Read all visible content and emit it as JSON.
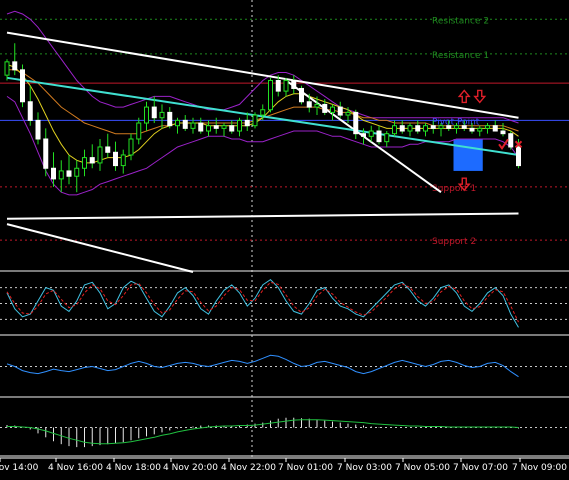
{
  "chart_data": {
    "type": "candlestick",
    "x_tick_labels": [
      "Nov 14:00",
      "4 Nov 16:00",
      "4 Nov 18:00",
      "4 Nov 20:00",
      "4 Nov 22:00",
      "7 Nov 01:00",
      "7 Nov 03:00",
      "7 Nov 05:00",
      "7 Nov 07:00",
      "7 Nov 09:00"
    ],
    "levels": [
      {
        "name": "Resistance 2",
        "color": "#1f8a1f",
        "style": "dotted",
        "level": 0.95
      },
      {
        "name": "Resistance 1",
        "color": "#1f8a1f",
        "style": "dotted",
        "level": 0.82
      },
      {
        "name": "Pivot Point",
        "color": "#3a4fff",
        "style": "solid",
        "level": 0.57
      },
      {
        "name": "Support 1",
        "color": "#c0182a",
        "style": "dotted",
        "level": 0.32
      },
      {
        "name": "Support 2",
        "color": "#c0182a",
        "style": "dotted",
        "level": 0.12
      }
    ],
    "extra_levels": [
      {
        "color": "#c0182a",
        "style": "solid",
        "level": 0.71
      }
    ],
    "candles": [
      [
        0.74,
        0.8,
        0.72,
        0.79
      ],
      [
        0.79,
        0.86,
        0.74,
        0.76
      ],
      [
        0.76,
        0.78,
        0.62,
        0.64
      ],
      [
        0.64,
        0.7,
        0.55,
        0.57
      ],
      [
        0.57,
        0.6,
        0.48,
        0.5
      ],
      [
        0.5,
        0.54,
        0.36,
        0.39
      ],
      [
        0.39,
        0.45,
        0.32,
        0.35
      ],
      [
        0.35,
        0.42,
        0.3,
        0.38
      ],
      [
        0.38,
        0.44,
        0.33,
        0.36
      ],
      [
        0.36,
        0.42,
        0.3,
        0.39
      ],
      [
        0.39,
        0.46,
        0.36,
        0.43
      ],
      [
        0.43,
        0.48,
        0.39,
        0.41
      ],
      [
        0.41,
        0.5,
        0.38,
        0.47
      ],
      [
        0.47,
        0.52,
        0.43,
        0.45
      ],
      [
        0.45,
        0.49,
        0.38,
        0.4
      ],
      [
        0.4,
        0.46,
        0.37,
        0.44
      ],
      [
        0.44,
        0.52,
        0.42,
        0.5
      ],
      [
        0.5,
        0.58,
        0.48,
        0.56
      ],
      [
        0.56,
        0.64,
        0.53,
        0.62
      ],
      [
        0.62,
        0.66,
        0.56,
        0.58
      ],
      [
        0.58,
        0.63,
        0.54,
        0.6
      ],
      [
        0.6,
        0.62,
        0.54,
        0.55
      ],
      [
        0.55,
        0.58,
        0.52,
        0.57
      ],
      [
        0.57,
        0.59,
        0.53,
        0.54
      ],
      [
        0.54,
        0.58,
        0.52,
        0.56
      ],
      [
        0.56,
        0.58,
        0.52,
        0.53
      ],
      [
        0.53,
        0.57,
        0.51,
        0.55
      ],
      [
        0.55,
        0.58,
        0.52,
        0.54
      ],
      [
        0.54,
        0.56,
        0.51,
        0.55
      ],
      [
        0.55,
        0.57,
        0.52,
        0.53
      ],
      [
        0.53,
        0.58,
        0.51,
        0.57
      ],
      [
        0.57,
        0.6,
        0.53,
        0.55
      ],
      [
        0.55,
        0.6,
        0.54,
        0.59
      ],
      [
        0.59,
        0.63,
        0.57,
        0.61
      ],
      [
        0.61,
        0.73,
        0.6,
        0.72
      ],
      [
        0.72,
        0.74,
        0.66,
        0.68
      ],
      [
        0.68,
        0.73,
        0.66,
        0.72
      ],
      [
        0.72,
        0.74,
        0.67,
        0.69
      ],
      [
        0.69,
        0.7,
        0.63,
        0.64
      ],
      [
        0.64,
        0.67,
        0.6,
        0.62
      ],
      [
        0.62,
        0.66,
        0.59,
        0.63
      ],
      [
        0.63,
        0.65,
        0.59,
        0.6
      ],
      [
        0.6,
        0.63,
        0.57,
        0.62
      ],
      [
        0.62,
        0.64,
        0.58,
        0.59
      ],
      [
        0.59,
        0.62,
        0.56,
        0.6
      ],
      [
        0.6,
        0.61,
        0.5,
        0.52
      ],
      [
        0.52,
        0.54,
        0.48,
        0.51
      ],
      [
        0.51,
        0.55,
        0.49,
        0.53
      ],
      [
        0.53,
        0.55,
        0.48,
        0.49
      ],
      [
        0.49,
        0.53,
        0.47,
        0.52
      ],
      [
        0.52,
        0.57,
        0.51,
        0.55
      ],
      [
        0.55,
        0.57,
        0.52,
        0.53
      ],
      [
        0.53,
        0.56,
        0.51,
        0.55
      ],
      [
        0.55,
        0.57,
        0.52,
        0.53
      ],
      [
        0.53,
        0.56,
        0.51,
        0.55
      ],
      [
        0.55,
        0.57,
        0.52,
        0.54
      ],
      [
        0.54,
        0.56,
        0.51,
        0.55
      ],
      [
        0.55,
        0.57,
        0.53,
        0.54
      ],
      [
        0.54,
        0.56,
        0.52,
        0.55
      ],
      [
        0.55,
        0.57,
        0.53,
        0.54
      ],
      [
        0.54,
        0.56,
        0.52,
        0.53
      ],
      [
        0.53,
        0.55,
        0.51,
        0.54
      ],
      [
        0.54,
        0.56,
        0.52,
        0.55
      ],
      [
        0.55,
        0.57,
        0.53,
        0.53
      ],
      [
        0.53,
        0.56,
        0.51,
        0.52
      ],
      [
        0.52,
        0.53,
        0.46,
        0.47
      ],
      [
        0.47,
        0.5,
        0.39,
        0.4
      ]
    ],
    "indicators": {
      "upper_band": [
        0.97,
        0.98,
        0.97,
        0.95,
        0.92,
        0.88,
        0.84,
        0.8,
        0.76,
        0.72,
        0.69,
        0.66,
        0.64,
        0.63,
        0.62,
        0.62,
        0.63,
        0.64,
        0.65,
        0.66,
        0.66,
        0.66,
        0.65,
        0.64,
        0.63,
        0.62,
        0.61,
        0.61,
        0.61,
        0.62,
        0.63,
        0.66,
        0.69,
        0.72,
        0.74,
        0.75,
        0.75,
        0.74,
        0.72,
        0.7,
        0.68,
        0.66,
        0.64,
        0.62,
        0.61,
        0.6,
        0.59,
        0.58,
        0.58,
        0.58,
        0.58,
        0.58,
        0.58,
        0.58,
        0.58,
        0.58,
        0.58,
        0.58,
        0.58,
        0.58,
        0.58,
        0.58,
        0.58,
        0.58,
        0.58,
        0.57,
        0.56
      ],
      "lower_band": [
        0.66,
        0.64,
        0.58,
        0.52,
        0.45,
        0.38,
        0.33,
        0.3,
        0.29,
        0.29,
        0.3,
        0.31,
        0.33,
        0.34,
        0.35,
        0.36,
        0.37,
        0.38,
        0.39,
        0.41,
        0.43,
        0.45,
        0.47,
        0.48,
        0.49,
        0.5,
        0.51,
        0.51,
        0.51,
        0.5,
        0.5,
        0.49,
        0.49,
        0.49,
        0.5,
        0.51,
        0.52,
        0.53,
        0.53,
        0.53,
        0.53,
        0.52,
        0.51,
        0.51,
        0.5,
        0.49,
        0.48,
        0.47,
        0.47,
        0.47,
        0.47,
        0.47,
        0.48,
        0.48,
        0.49,
        0.49,
        0.49,
        0.49,
        0.5,
        0.5,
        0.5,
        0.5,
        0.5,
        0.5,
        0.49,
        0.47,
        0.43
      ],
      "ma_fast": [
        0.78,
        0.77,
        0.74,
        0.7,
        0.65,
        0.59,
        0.53,
        0.48,
        0.44,
        0.42,
        0.41,
        0.41,
        0.42,
        0.43,
        0.43,
        0.43,
        0.44,
        0.46,
        0.49,
        0.52,
        0.54,
        0.55,
        0.56,
        0.56,
        0.56,
        0.56,
        0.55,
        0.55,
        0.55,
        0.55,
        0.55,
        0.55,
        0.56,
        0.58,
        0.61,
        0.64,
        0.66,
        0.67,
        0.67,
        0.66,
        0.65,
        0.64,
        0.63,
        0.62,
        0.61,
        0.59,
        0.57,
        0.56,
        0.55,
        0.54,
        0.54,
        0.54,
        0.54,
        0.54,
        0.54,
        0.54,
        0.54,
        0.54,
        0.54,
        0.54,
        0.54,
        0.54,
        0.54,
        0.54,
        0.54,
        0.53,
        0.51
      ],
      "ma_slow": [
        0.76,
        0.76,
        0.75,
        0.73,
        0.71,
        0.68,
        0.65,
        0.62,
        0.6,
        0.58,
        0.56,
        0.55,
        0.54,
        0.53,
        0.52,
        0.52,
        0.52,
        0.52,
        0.53,
        0.54,
        0.55,
        0.55,
        0.56,
        0.56,
        0.56,
        0.56,
        0.56,
        0.56,
        0.56,
        0.56,
        0.56,
        0.56,
        0.57,
        0.58,
        0.59,
        0.6,
        0.61,
        0.62,
        0.62,
        0.62,
        0.62,
        0.61,
        0.61,
        0.6,
        0.6,
        0.59,
        0.58,
        0.58,
        0.57,
        0.57,
        0.56,
        0.56,
        0.56,
        0.56,
        0.56,
        0.55,
        0.55,
        0.55,
        0.55,
        0.55,
        0.55,
        0.55,
        0.55,
        0.55,
        0.55,
        0.54,
        0.53
      ]
    },
    "trend_lines": [
      {
        "color": "#ffffff",
        "from": [
          0,
          1.1
        ],
        "to": [
          66,
          1.33
        ]
      },
      {
        "color": "#ffffff",
        "from": [
          0,
          0.9
        ],
        "to": [
          66,
          0.58
        ]
      },
      {
        "color": "#ffffff",
        "from": [
          0,
          0.2
        ],
        "to": [
          66,
          0.22
        ]
      },
      {
        "color": "#ffffff",
        "from": [
          0,
          0.18
        ],
        "to": [
          24,
          0.0
        ]
      },
      {
        "color": "#ffffff",
        "from": [
          36,
          0.72
        ],
        "to": [
          56,
          0.3
        ]
      },
      {
        "color": "#40e0d0",
        "from": [
          0,
          0.73
        ],
        "to": [
          66,
          0.44
        ]
      }
    ],
    "highlight_box": {
      "color": "#1d6bff",
      "from_candle": 58,
      "to_candle": 61,
      "low": 0.38,
      "high": 0.5
    },
    "markers": [
      {
        "type": "arrow-up",
        "color": "#e0202a",
        "candle": 59,
        "level": 0.66
      },
      {
        "type": "arrow-down",
        "color": "#e0202a",
        "candle": 61,
        "level": 0.66
      },
      {
        "type": "arrow-down",
        "color": "#e0202a",
        "candle": 59,
        "level": 0.33
      },
      {
        "type": "check",
        "color": "#e0202a",
        "candle": 64,
        "level": 0.48
      },
      {
        "type": "cross",
        "color": "#e0202a",
        "candle": 66,
        "level": 0.48
      }
    ],
    "sub_panels": [
      {
        "name": "stochastic",
        "guides": [
          0.8,
          0.5,
          0.2
        ],
        "series": [
          {
            "color": "#40c0e0",
            "values": [
              0.7,
              0.4,
              0.25,
              0.3,
              0.55,
              0.8,
              0.75,
              0.45,
              0.35,
              0.55,
              0.85,
              0.9,
              0.7,
              0.4,
              0.5,
              0.8,
              0.92,
              0.85,
              0.6,
              0.35,
              0.25,
              0.45,
              0.7,
              0.8,
              0.65,
              0.4,
              0.3,
              0.55,
              0.75,
              0.85,
              0.7,
              0.45,
              0.6,
              0.85,
              0.95,
              0.8,
              0.55,
              0.35,
              0.3,
              0.5,
              0.75,
              0.8,
              0.6,
              0.45,
              0.4,
              0.3,
              0.25,
              0.4,
              0.55,
              0.7,
              0.85,
              0.9,
              0.75,
              0.55,
              0.45,
              0.6,
              0.8,
              0.85,
              0.7,
              0.45,
              0.35,
              0.5,
              0.7,
              0.8,
              0.65,
              0.3,
              0.05
            ]
          },
          {
            "color": "#e02020",
            "values": [
              0.72,
              0.5,
              0.32,
              0.3,
              0.45,
              0.68,
              0.75,
              0.58,
              0.42,
              0.48,
              0.7,
              0.85,
              0.78,
              0.55,
              0.48,
              0.65,
              0.85,
              0.88,
              0.7,
              0.48,
              0.32,
              0.38,
              0.58,
              0.74,
              0.72,
              0.52,
              0.36,
              0.45,
              0.65,
              0.8,
              0.76,
              0.56,
              0.55,
              0.75,
              0.9,
              0.86,
              0.66,
              0.45,
              0.33,
              0.42,
              0.64,
              0.77,
              0.68,
              0.52,
              0.43,
              0.34,
              0.28,
              0.34,
              0.48,
              0.62,
              0.78,
              0.87,
              0.8,
              0.63,
              0.5,
              0.54,
              0.72,
              0.82,
              0.77,
              0.55,
              0.4,
              0.44,
              0.62,
              0.76,
              0.72,
              0.45,
              0.15
            ]
          }
        ]
      },
      {
        "name": "oscillator",
        "guides": [
          0.5
        ],
        "series": [
          {
            "color": "#3090ff",
            "values": [
              0.55,
              0.5,
              0.42,
              0.38,
              0.36,
              0.4,
              0.45,
              0.42,
              0.4,
              0.44,
              0.48,
              0.5,
              0.46,
              0.42,
              0.44,
              0.5,
              0.56,
              0.6,
              0.56,
              0.5,
              0.48,
              0.52,
              0.56,
              0.58,
              0.56,
              0.52,
              0.5,
              0.54,
              0.58,
              0.62,
              0.6,
              0.56,
              0.6,
              0.66,
              0.72,
              0.7,
              0.64,
              0.56,
              0.5,
              0.52,
              0.58,
              0.6,
              0.56,
              0.52,
              0.48,
              0.4,
              0.36,
              0.4,
              0.46,
              0.52,
              0.58,
              0.62,
              0.58,
              0.54,
              0.5,
              0.54,
              0.6,
              0.62,
              0.58,
              0.52,
              0.48,
              0.5,
              0.56,
              0.58,
              0.52,
              0.4,
              0.3
            ]
          }
        ]
      },
      {
        "name": "macd",
        "zero": 0.5,
        "histogram": [
          0.55,
          0.54,
          0.52,
          0.46,
          0.38,
          0.3,
          0.22,
          0.16,
          0.12,
          0.1,
          0.1,
          0.12,
          0.14,
          0.16,
          0.18,
          0.2,
          0.24,
          0.28,
          0.32,
          0.36,
          0.4,
          0.44,
          0.48,
          0.5,
          0.52,
          0.54,
          0.54,
          0.54,
          0.54,
          0.54,
          0.55,
          0.56,
          0.58,
          0.6,
          0.64,
          0.68,
          0.7,
          0.7,
          0.69,
          0.68,
          0.66,
          0.64,
          0.62,
          0.6,
          0.58,
          0.56,
          0.54,
          0.52,
          0.51,
          0.5,
          0.5,
          0.5,
          0.5,
          0.5,
          0.5,
          0.5,
          0.5,
          0.5,
          0.5,
          0.5,
          0.5,
          0.5,
          0.5,
          0.5,
          0.5,
          0.5,
          0.48
        ],
        "signal": {
          "color": "#20c040",
          "values": [
            0.52,
            0.52,
            0.51,
            0.5,
            0.47,
            0.43,
            0.38,
            0.33,
            0.28,
            0.24,
            0.2,
            0.18,
            0.17,
            0.17,
            0.18,
            0.19,
            0.21,
            0.24,
            0.27,
            0.3,
            0.34,
            0.37,
            0.41,
            0.44,
            0.47,
            0.49,
            0.51,
            0.52,
            0.53,
            0.53,
            0.54,
            0.54,
            0.55,
            0.57,
            0.59,
            0.61,
            0.63,
            0.65,
            0.66,
            0.66,
            0.66,
            0.65,
            0.64,
            0.63,
            0.62,
            0.61,
            0.6,
            0.58,
            0.57,
            0.56,
            0.55,
            0.54,
            0.53,
            0.53,
            0.52,
            0.52,
            0.52,
            0.51,
            0.51,
            0.51,
            0.51,
            0.51,
            0.51,
            0.51,
            0.51,
            0.51,
            0.5
          ]
        }
      }
    ]
  }
}
